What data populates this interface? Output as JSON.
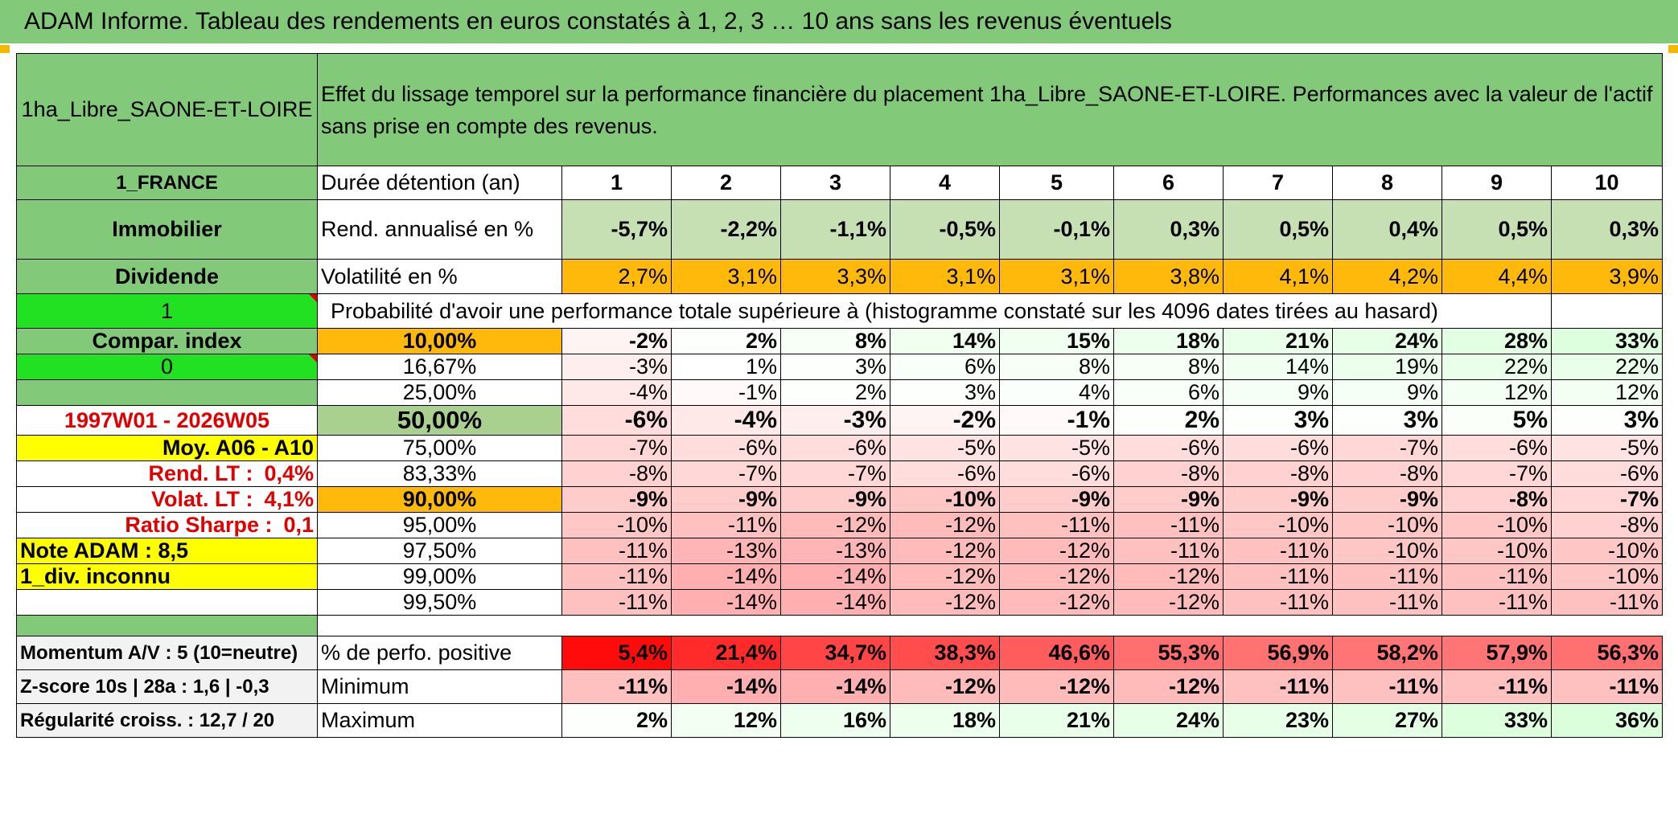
{
  "banner": {
    "title": "ADAM Informe. Tableau des rendements en euros constatés à 1, 2, 3 … 10 ans sans les revenus éventuels"
  },
  "header": {
    "asset": "1ha_Libre_SAONE-ET-LOIRE",
    "description": "Effet du lissage temporel sur la performance financière du placement 1ha_Libre_SAONE-ET-LOIRE. Performances avec la valeur de l'actif sans prise en compte des revenus."
  },
  "side": {
    "country": "1_FRANCE",
    "category": "Immobilier",
    "income": "Dividende",
    "flag1": "1",
    "compar": "Compar. index",
    "flag0": "0",
    "period": "1997W01 - 2026W05",
    "moy": "Moy. A06 - A10",
    "rend_label": "Rend. LT :",
    "rend_value": "0,4%",
    "volat_label": "Volat. LT :",
    "volat_value": "4,1%",
    "sharpe_label": "Ratio Sharpe :",
    "sharpe_value": "0,1",
    "note": "Note ADAM : 8,5",
    "div": "1_div. inconnu"
  },
  "labels": {
    "duration": "Durée détention (an)",
    "rend": "Rend. annualisé en %",
    "vol": "Volatilité en %",
    "prob": "Probabilité d'avoir une performance totale supérieure à (histogramme constaté sur les 4096 dates tirées au hasard)"
  },
  "years": [
    "1",
    "2",
    "3",
    "4",
    "5",
    "6",
    "7",
    "8",
    "9",
    "10"
  ],
  "rend": [
    "-5,7%",
    "-2,2%",
    "-1,1%",
    "-0,5%",
    "-0,1%",
    "0,3%",
    "0,5%",
    "0,4%",
    "0,5%",
    "0,3%"
  ],
  "vol": [
    "2,7%",
    "3,1%",
    "3,3%",
    "3,1%",
    "3,1%",
    "3,8%",
    "4,1%",
    "4,2%",
    "4,4%",
    "3,9%"
  ],
  "quantiles": [
    {
      "p": "10,00%",
      "v": [
        "-2%",
        "2%",
        "8%",
        "14%",
        "15%",
        "18%",
        "21%",
        "24%",
        "28%",
        "33%"
      ]
    },
    {
      "p": "16,67%",
      "v": [
        "-3%",
        "1%",
        "3%",
        "6%",
        "8%",
        "8%",
        "14%",
        "19%",
        "22%",
        "22%"
      ]
    },
    {
      "p": "25,00%",
      "v": [
        "-4%",
        "-1%",
        "2%",
        "3%",
        "4%",
        "6%",
        "9%",
        "9%",
        "12%",
        "12%"
      ]
    },
    {
      "p": "50,00%",
      "v": [
        "-6%",
        "-4%",
        "-3%",
        "-2%",
        "-1%",
        "2%",
        "3%",
        "3%",
        "5%",
        "3%"
      ]
    },
    {
      "p": "75,00%",
      "v": [
        "-7%",
        "-6%",
        "-6%",
        "-5%",
        "-5%",
        "-6%",
        "-6%",
        "-7%",
        "-6%",
        "-5%"
      ]
    },
    {
      "p": "83,33%",
      "v": [
        "-8%",
        "-7%",
        "-7%",
        "-6%",
        "-6%",
        "-8%",
        "-8%",
        "-8%",
        "-7%",
        "-6%"
      ]
    },
    {
      "p": "90,00%",
      "v": [
        "-9%",
        "-9%",
        "-9%",
        "-10%",
        "-9%",
        "-9%",
        "-9%",
        "-9%",
        "-8%",
        "-7%"
      ]
    },
    {
      "p": "95,00%",
      "v": [
        "-10%",
        "-11%",
        "-12%",
        "-12%",
        "-11%",
        "-11%",
        "-10%",
        "-10%",
        "-10%",
        "-8%"
      ]
    },
    {
      "p": "97,50%",
      "v": [
        "-11%",
        "-13%",
        "-13%",
        "-12%",
        "-12%",
        "-11%",
        "-11%",
        "-10%",
        "-10%",
        "-10%"
      ]
    },
    {
      "p": "99,00%",
      "v": [
        "-11%",
        "-14%",
        "-14%",
        "-12%",
        "-12%",
        "-12%",
        "-11%",
        "-11%",
        "-11%",
        "-10%"
      ]
    },
    {
      "p": "99,50%",
      "v": [
        "-11%",
        "-14%",
        "-14%",
        "-12%",
        "-12%",
        "-12%",
        "-11%",
        "-11%",
        "-11%",
        "-11%"
      ]
    }
  ],
  "bottom": {
    "momentum": "Momentum A/V : 5 (10=neutre)",
    "zscore": "Z-score 10s | 28a : 1,6 | -0,3",
    "regul": "Régularité croiss. : 12,7 / 20",
    "pos_label": "% de perfo. positive",
    "min_label": "Minimum",
    "max_label": "Maximum",
    "pos": [
      "5,4%",
      "21,4%",
      "34,7%",
      "38,3%",
      "46,6%",
      "55,3%",
      "56,9%",
      "58,2%",
      "57,9%",
      "56,3%"
    ],
    "min": [
      "-11%",
      "-14%",
      "-14%",
      "-12%",
      "-12%",
      "-12%",
      "-11%",
      "-11%",
      "-11%",
      "-11%"
    ],
    "max": [
      "2%",
      "12%",
      "16%",
      "18%",
      "21%",
      "24%",
      "23%",
      "27%",
      "33%",
      "36%"
    ]
  }
}
